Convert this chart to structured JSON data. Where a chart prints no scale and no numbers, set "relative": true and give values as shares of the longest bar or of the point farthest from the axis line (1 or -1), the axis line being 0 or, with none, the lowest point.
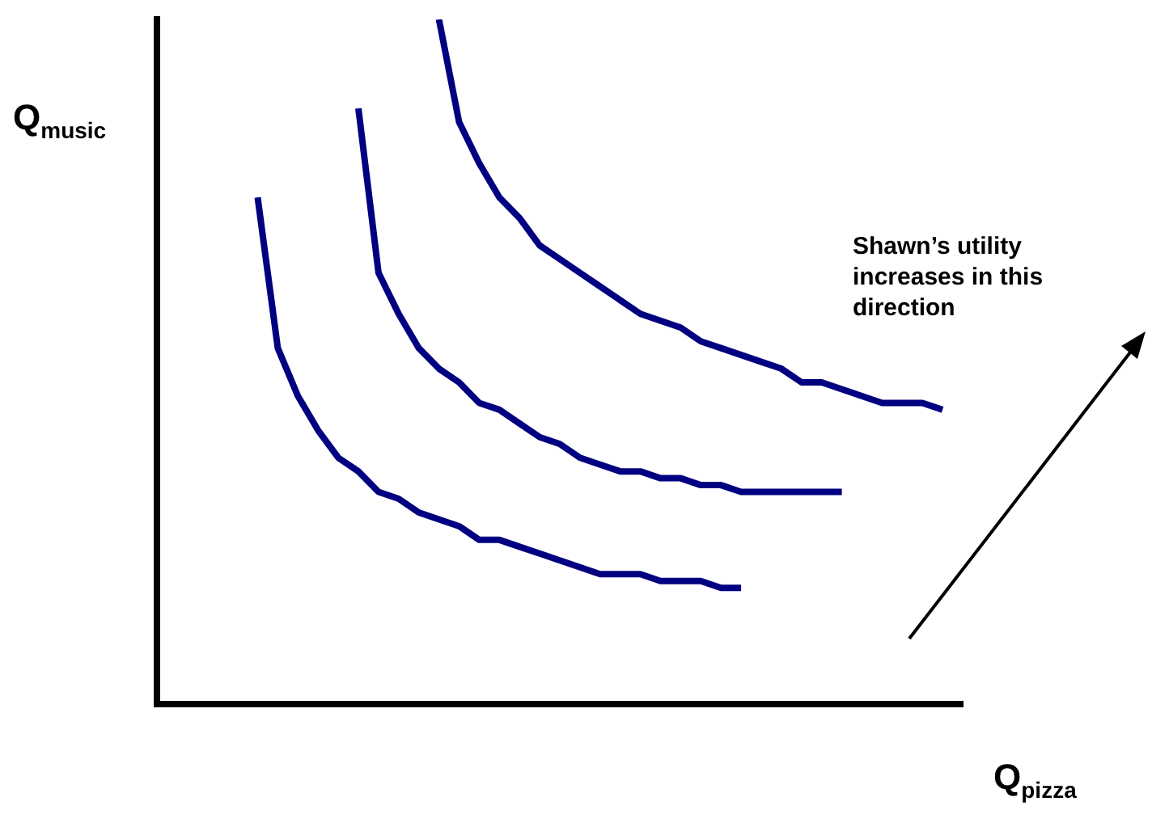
{
  "chart_data": {
    "type": "line",
    "relative": true,
    "xlabel": "Q$_{pizza}$",
    "ylabel": "Q$_{music}$",
    "annotations": [
      "Shawn’s utility increases in this direction"
    ],
    "grid": false,
    "legend": false,
    "marker": "none",
    "line_style": "solid",
    "categories": [
      null,
      null,
      null,
      null,
      null,
      null,
      null,
      null,
      null,
      null,
      null,
      null,
      null,
      null,
      null,
      null,
      null,
      null,
      null,
      null,
      null,
      null,
      null,
      null,
      null,
      null,
      null,
      null,
      null,
      null,
      null,
      null,
      null,
      null,
      null,
      null,
      null,
      null,
      null,
      null,
      null
    ],
    "series": [
      {
        "color": "#000080",
        "values": [
          null,
          null,
          null,
          null,
          null,
          0.74,
          0.52,
          0.45,
          0.4,
          0.36,
          0.34,
          0.31,
          0.3,
          0.28,
          0.27,
          0.26,
          0.24,
          0.24,
          0.23,
          0.22,
          0.21,
          0.2,
          0.19,
          0.19,
          0.19,
          0.18,
          0.18,
          0.18,
          0.17,
          0.17,
          null,
          null,
          null,
          null,
          null,
          null,
          null,
          null,
          null,
          null,
          null
        ]
      },
      {
        "color": "#000080",
        "values": [
          null,
          null,
          null,
          null,
          null,
          null,
          null,
          null,
          null,
          null,
          0.87,
          0.63,
          0.57,
          0.52,
          0.49,
          0.47,
          0.44,
          0.43,
          0.41,
          0.39,
          0.38,
          0.36,
          0.35,
          0.34,
          0.34,
          0.33,
          0.33,
          0.32,
          0.32,
          0.31,
          0.31,
          0.31,
          0.31,
          0.31,
          0.31,
          null,
          null,
          null,
          null,
          null,
          null
        ]
      },
      {
        "color": "#000080",
        "values": [
          null,
          null,
          null,
          null,
          null,
          null,
          null,
          null,
          null,
          null,
          null,
          null,
          null,
          null,
          1,
          0.85,
          0.79,
          0.74,
          0.71,
          0.67,
          0.65,
          0.63,
          0.61,
          0.59,
          0.57,
          0.56,
          0.55,
          0.53,
          0.52,
          0.51,
          0.5,
          0.49,
          0.47,
          0.47,
          0.46,
          0.45,
          0.44,
          0.44,
          0.44,
          0.43,
          null
        ]
      }
    ]
  }
}
